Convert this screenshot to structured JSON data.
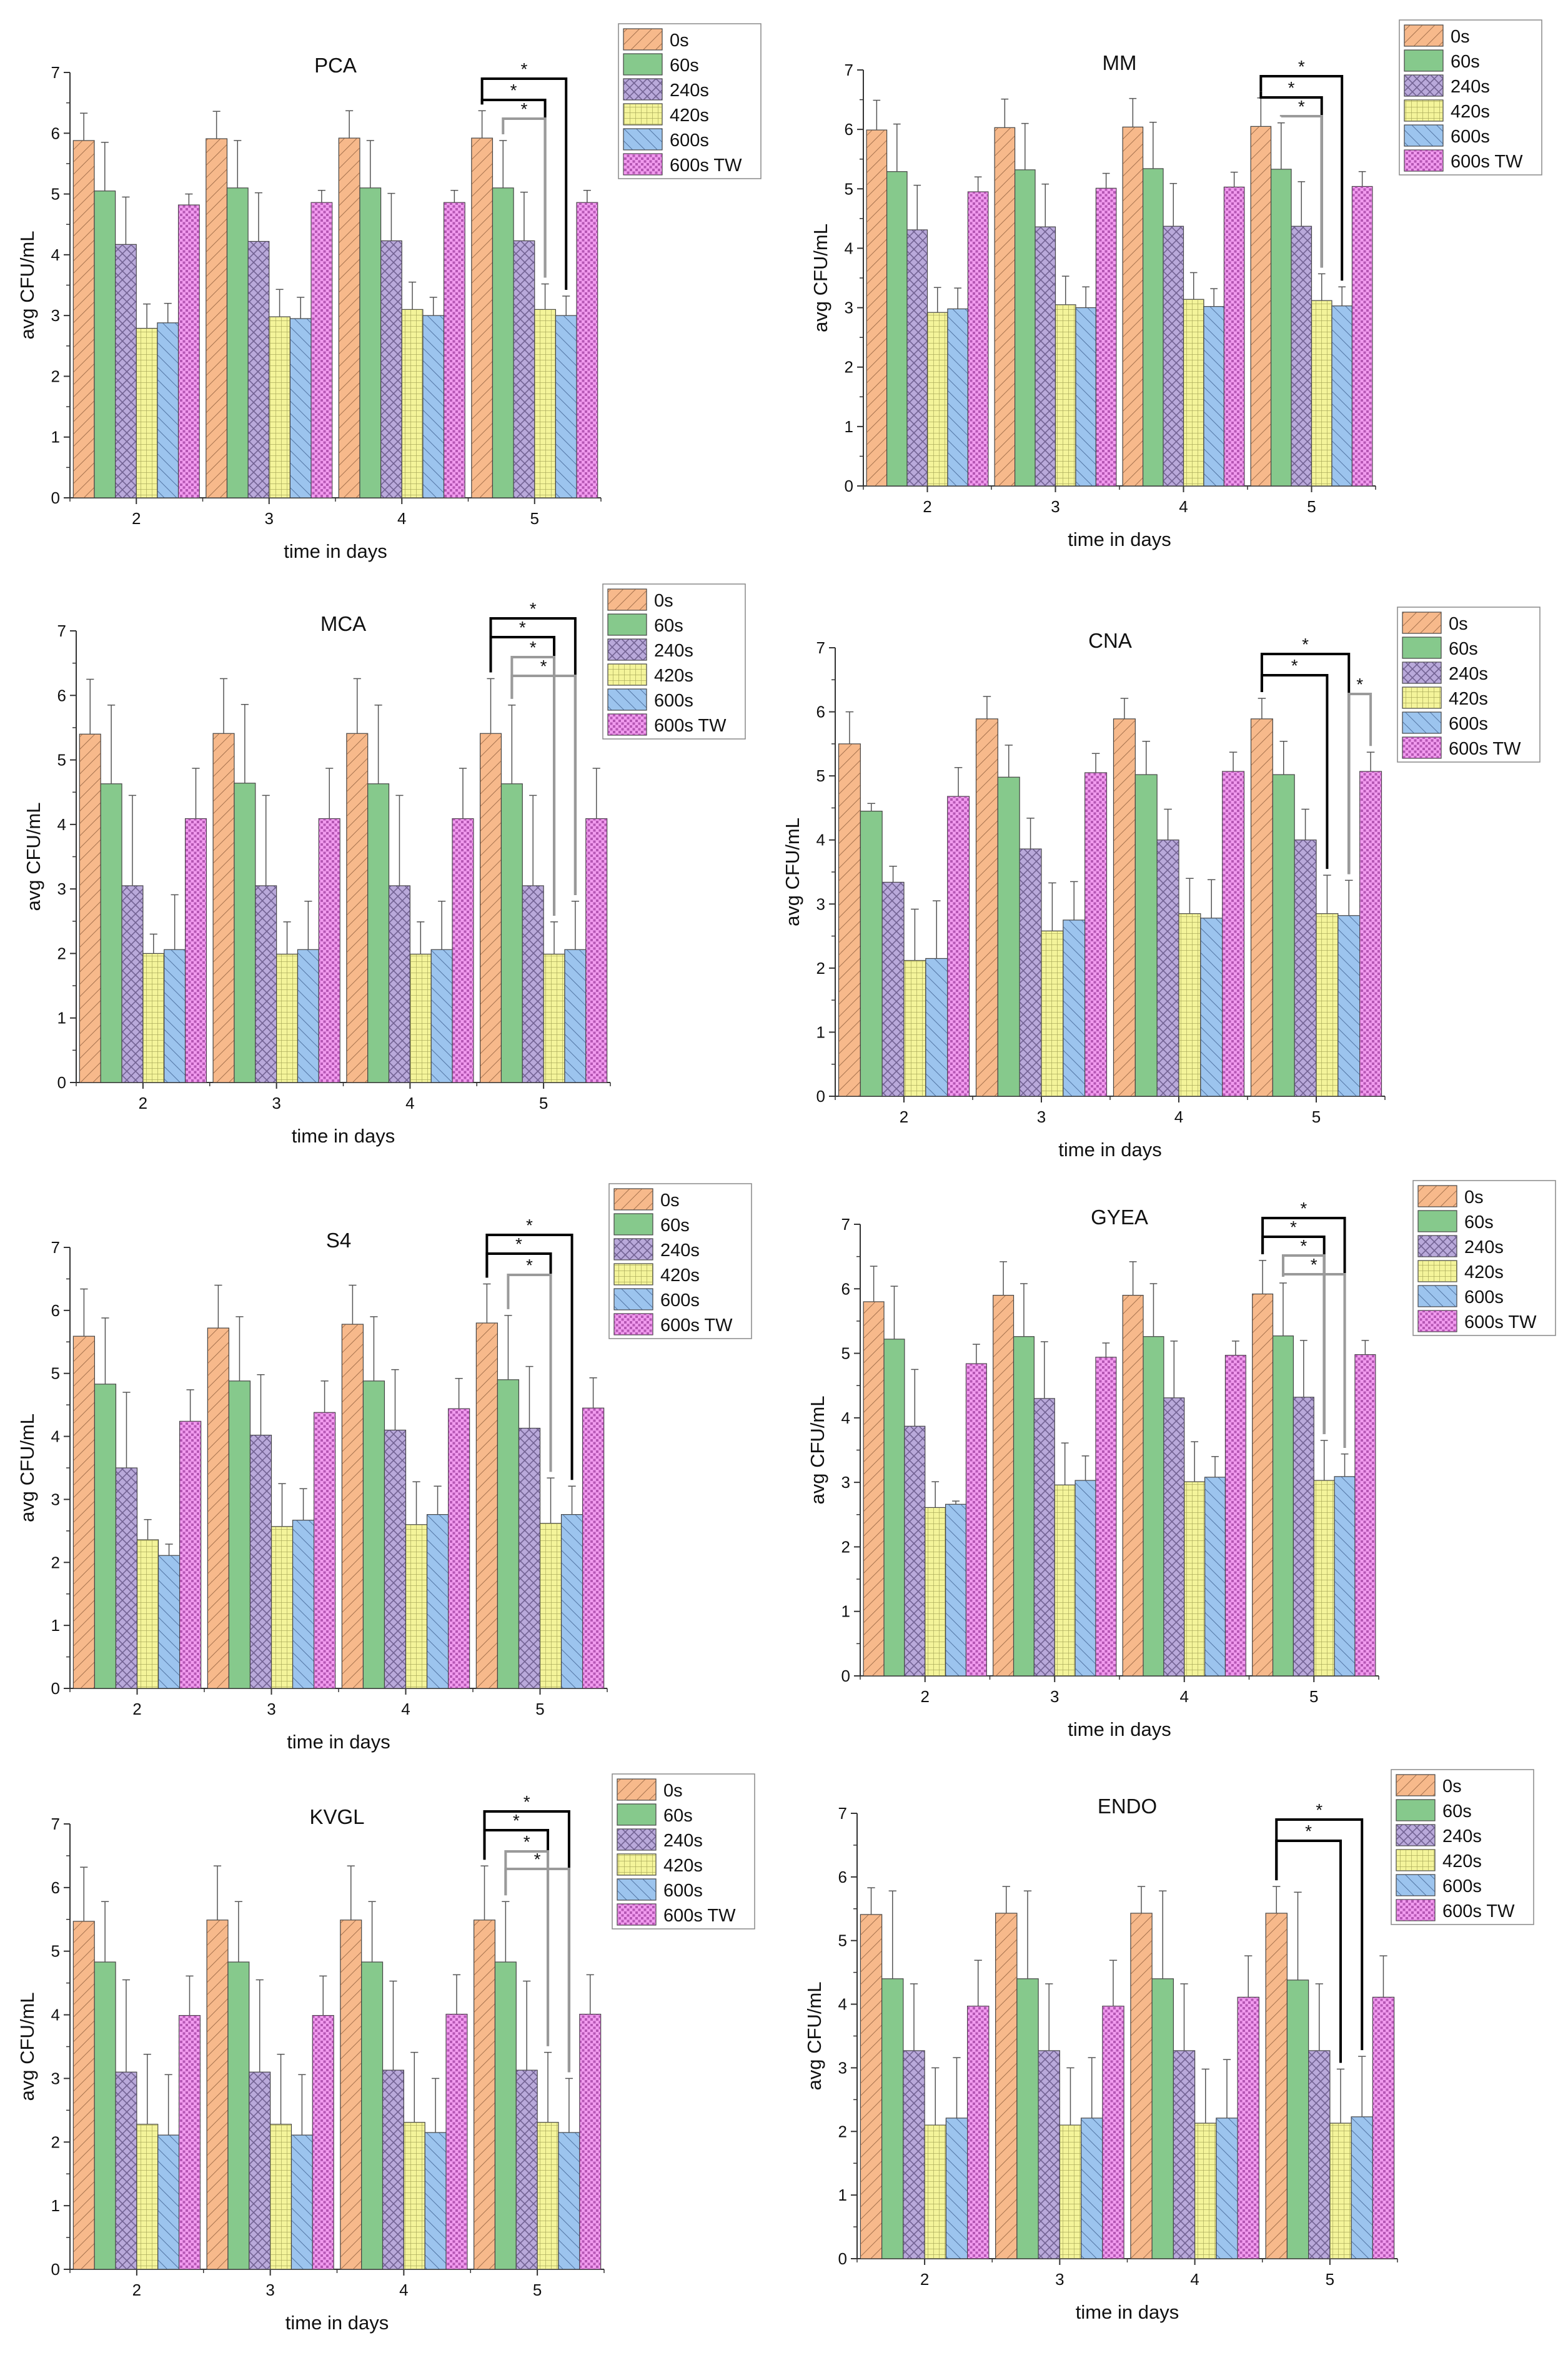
{
  "chart_data": [
    {
      "type": "bar",
      "title": "PCA",
      "categories": [
        "2",
        "3",
        "4",
        "5"
      ],
      "xlabel": "time in days",
      "ylabel": "avg CFU/mL",
      "ylim": [
        0,
        7
      ],
      "yticks": [
        "0",
        "1",
        "2",
        "3",
        "4",
        "5",
        "6",
        "7"
      ],
      "legend_position": "top-right",
      "series": [
        {
          "name": "0s",
          "values": [
            5.88,
            5.91,
            5.92,
            5.92
          ],
          "errors": [
            0.45,
            0.45,
            0.45,
            0.45
          ]
        },
        {
          "name": "60s",
          "values": [
            5.05,
            5.1,
            5.1,
            5.1
          ],
          "errors": [
            0.8,
            0.78,
            0.78,
            0.78
          ]
        },
        {
          "name": "240s",
          "values": [
            4.17,
            4.22,
            4.23,
            4.23
          ],
          "errors": [
            0.78,
            0.8,
            0.78,
            0.8
          ]
        },
        {
          "name": "420s",
          "values": [
            2.79,
            2.98,
            3.1,
            3.1
          ],
          "errors": [
            0.4,
            0.45,
            0.45,
            0.42
          ]
        },
        {
          "name": "600s",
          "values": [
            2.88,
            2.95,
            3.0,
            3.0
          ],
          "errors": [
            0.32,
            0.35,
            0.3,
            0.32
          ]
        },
        {
          "name": "600s TW",
          "values": [
            4.82,
            4.86,
            4.86,
            4.86
          ],
          "errors": [
            0.18,
            0.2,
            0.2,
            0.2
          ]
        }
      ],
      "annotations": [
        "*",
        "*",
        "*"
      ]
    },
    {
      "type": "bar",
      "title": "MM",
      "categories": [
        "2",
        "3",
        "4",
        "5"
      ],
      "xlabel": "time in days",
      "ylabel": "avg CFU/mL",
      "ylim": [
        0,
        7
      ],
      "yticks": [
        "0",
        "1",
        "2",
        "3",
        "4",
        "5",
        "6",
        "7"
      ],
      "legend_position": "top-right",
      "series": [
        {
          "name": "0s",
          "values": [
            5.99,
            6.03,
            6.04,
            6.05
          ],
          "errors": [
            0.5,
            0.48,
            0.48,
            0.48
          ]
        },
        {
          "name": "60s",
          "values": [
            5.29,
            5.32,
            5.34,
            5.33
          ],
          "errors": [
            0.8,
            0.78,
            0.78,
            0.78
          ]
        },
        {
          "name": "240s",
          "values": [
            4.31,
            4.36,
            4.37,
            4.37
          ],
          "errors": [
            0.75,
            0.72,
            0.72,
            0.75
          ]
        },
        {
          "name": "420s",
          "values": [
            2.92,
            3.05,
            3.14,
            3.12
          ],
          "errors": [
            0.42,
            0.48,
            0.45,
            0.45
          ]
        },
        {
          "name": "600s",
          "values": [
            2.98,
            3.0,
            3.02,
            3.03
          ],
          "errors": [
            0.35,
            0.35,
            0.3,
            0.32
          ]
        },
        {
          "name": "600s TW",
          "values": [
            4.95,
            5.01,
            5.03,
            5.04
          ],
          "errors": [
            0.25,
            0.25,
            0.25,
            0.25
          ]
        }
      ],
      "annotations": [
        "*",
        "*",
        "*"
      ]
    },
    {
      "type": "bar",
      "title": "MCA",
      "categories": [
        "2",
        "3",
        "4",
        "5"
      ],
      "xlabel": "time in days",
      "ylabel": "avg CFU/mL",
      "ylim": [
        0,
        7
      ],
      "yticks": [
        "0",
        "1",
        "2",
        "3",
        "4",
        "5",
        "6",
        "7"
      ],
      "legend_position": "top-right",
      "series": [
        {
          "name": "0s",
          "values": [
            5.4,
            5.41,
            5.41,
            5.41
          ],
          "errors": [
            0.85,
            0.85,
            0.85,
            0.85
          ]
        },
        {
          "name": "60s",
          "values": [
            4.63,
            4.64,
            4.63,
            4.63
          ],
          "errors": [
            1.22,
            1.22,
            1.22,
            1.22
          ]
        },
        {
          "name": "240s",
          "values": [
            3.05,
            3.05,
            3.05,
            3.05
          ],
          "errors": [
            1.4,
            1.4,
            1.4,
            1.4
          ]
        },
        {
          "name": "420s",
          "values": [
            2.0,
            1.99,
            1.99,
            1.99
          ],
          "errors": [
            0.3,
            0.5,
            0.5,
            0.5
          ]
        },
        {
          "name": "600s",
          "values": [
            2.06,
            2.06,
            2.06,
            2.06
          ],
          "errors": [
            0.85,
            0.75,
            0.75,
            0.75
          ]
        },
        {
          "name": "600s TW",
          "values": [
            4.09,
            4.09,
            4.09,
            4.09
          ],
          "errors": [
            0.78,
            0.78,
            0.78,
            0.78
          ]
        }
      ],
      "annotations": [
        "*",
        "*",
        "*",
        "*"
      ]
    },
    {
      "type": "bar",
      "title": "CNA",
      "categories": [
        "2",
        "3",
        "4",
        "5"
      ],
      "xlabel": "time in days",
      "ylabel": "avg CFU/mL",
      "ylim": [
        0,
        7
      ],
      "yticks": [
        "0",
        "1",
        "2",
        "3",
        "4",
        "5",
        "6",
        "7"
      ],
      "legend_position": "top-right",
      "series": [
        {
          "name": "0s",
          "values": [
            5.5,
            5.89,
            5.89,
            5.89
          ],
          "errors": [
            0.5,
            0.35,
            0.32,
            0.32
          ]
        },
        {
          "name": "60s",
          "values": [
            4.45,
            4.98,
            5.02,
            5.02
          ],
          "errors": [
            0.12,
            0.5,
            0.52,
            0.52
          ]
        },
        {
          "name": "240s",
          "values": [
            3.34,
            3.86,
            4.0,
            4.0
          ],
          "errors": [
            0.25,
            0.48,
            0.48,
            0.48
          ]
        },
        {
          "name": "420s",
          "values": [
            2.12,
            2.58,
            2.85,
            2.85
          ],
          "errors": [
            0.8,
            0.75,
            0.55,
            0.6
          ]
        },
        {
          "name": "600s",
          "values": [
            2.15,
            2.75,
            2.78,
            2.82
          ],
          "errors": [
            0.9,
            0.6,
            0.6,
            0.55
          ]
        },
        {
          "name": "600s TW",
          "values": [
            4.68,
            5.05,
            5.07,
            5.07
          ],
          "errors": [
            0.45,
            0.3,
            0.3,
            0.3
          ]
        }
      ],
      "annotations": [
        "*",
        "*",
        "*"
      ]
    },
    {
      "type": "bar",
      "title": "S4",
      "categories": [
        "2",
        "3",
        "4",
        "5"
      ],
      "xlabel": "time in days",
      "ylabel": "avg CFU/mL",
      "ylim": [
        0,
        7
      ],
      "yticks": [
        "0",
        "1",
        "2",
        "3",
        "4",
        "5",
        "6",
        "7"
      ],
      "legend_position": "top-right",
      "series": [
        {
          "name": "0s",
          "values": [
            5.59,
            5.72,
            5.78,
            5.8
          ],
          "errors": [
            0.75,
            0.68,
            0.62,
            0.62
          ]
        },
        {
          "name": "60s",
          "values": [
            4.83,
            4.88,
            4.88,
            4.9
          ],
          "errors": [
            1.05,
            1.02,
            1.02,
            1.02
          ]
        },
        {
          "name": "240s",
          "values": [
            3.5,
            4.02,
            4.1,
            4.13
          ],
          "errors": [
            1.2,
            0.96,
            0.96,
            0.98
          ]
        },
        {
          "name": "420s",
          "values": [
            2.36,
            2.57,
            2.6,
            2.62
          ],
          "errors": [
            0.32,
            0.68,
            0.68,
            0.72
          ]
        },
        {
          "name": "600s",
          "values": [
            2.11,
            2.67,
            2.76,
            2.76
          ],
          "errors": [
            0.18,
            0.5,
            0.45,
            0.45
          ]
        },
        {
          "name": "600s TW",
          "values": [
            4.24,
            4.38,
            4.44,
            4.45
          ],
          "errors": [
            0.5,
            0.5,
            0.48,
            0.48
          ]
        }
      ],
      "annotations": [
        "*",
        "*",
        "*"
      ]
    },
    {
      "type": "bar",
      "title": "GYEA",
      "categories": [
        "2",
        "3",
        "4",
        "5"
      ],
      "xlabel": "time in days",
      "ylabel": "avg CFU/mL",
      "ylim": [
        0,
        7
      ],
      "yticks": [
        "0",
        "1",
        "2",
        "3",
        "4",
        "5",
        "6",
        "7"
      ],
      "legend_position": "top-right",
      "series": [
        {
          "name": "0s",
          "values": [
            5.8,
            5.9,
            5.9,
            5.92
          ],
          "errors": [
            0.55,
            0.52,
            0.52,
            0.52
          ]
        },
        {
          "name": "60s",
          "values": [
            5.22,
            5.26,
            5.26,
            5.27
          ],
          "errors": [
            0.82,
            0.82,
            0.82,
            0.82
          ]
        },
        {
          "name": "240s",
          "values": [
            3.87,
            4.3,
            4.31,
            4.32
          ],
          "errors": [
            0.88,
            0.88,
            0.88,
            0.88
          ]
        },
        {
          "name": "420s",
          "values": [
            2.61,
            2.96,
            3.01,
            3.03
          ],
          "errors": [
            0.4,
            0.65,
            0.62,
            0.62
          ]
        },
        {
          "name": "600s",
          "values": [
            2.66,
            3.03,
            3.08,
            3.09
          ],
          "errors": [
            0.05,
            0.38,
            0.32,
            0.35
          ]
        },
        {
          "name": "600s TW",
          "values": [
            4.84,
            4.94,
            4.97,
            4.98
          ],
          "errors": [
            0.3,
            0.22,
            0.22,
            0.22
          ]
        }
      ],
      "annotations": [
        "*",
        "*",
        "*",
        "*"
      ]
    },
    {
      "type": "bar",
      "title": "KVGL",
      "categories": [
        "2",
        "3",
        "4",
        "5"
      ],
      "xlabel": "time in days",
      "ylabel": "avg CFU/mL",
      "ylim": [
        0,
        7
      ],
      "yticks": [
        "0",
        "1",
        "2",
        "3",
        "4",
        "5",
        "6",
        "7"
      ],
      "legend_position": "top-right",
      "series": [
        {
          "name": "0s",
          "values": [
            5.47,
            5.49,
            5.49,
            5.49
          ],
          "errors": [
            0.85,
            0.85,
            0.85,
            0.85
          ]
        },
        {
          "name": "60s",
          "values": [
            4.83,
            4.83,
            4.83,
            4.83
          ],
          "errors": [
            0.95,
            0.95,
            0.95,
            0.95
          ]
        },
        {
          "name": "240s",
          "values": [
            3.1,
            3.1,
            3.13,
            3.13
          ],
          "errors": [
            1.45,
            1.45,
            1.4,
            1.4
          ]
        },
        {
          "name": "420s",
          "values": [
            2.28,
            2.28,
            2.31,
            2.31
          ],
          "errors": [
            1.1,
            1.1,
            1.1,
            1.1
          ]
        },
        {
          "name": "600s",
          "values": [
            2.11,
            2.11,
            2.15,
            2.15
          ],
          "errors": [
            0.95,
            0.95,
            0.85,
            0.85
          ]
        },
        {
          "name": "600s TW",
          "values": [
            3.99,
            3.99,
            4.01,
            4.01
          ],
          "errors": [
            0.62,
            0.62,
            0.62,
            0.62
          ]
        }
      ],
      "annotations": [
        "*",
        "*",
        "*",
        "*"
      ]
    },
    {
      "type": "bar",
      "title": "ENDO",
      "categories": [
        "2",
        "3",
        "4",
        "5"
      ],
      "xlabel": "time in days",
      "ylabel": "avg CFU/mL",
      "ylim": [
        0,
        7
      ],
      "yticks": [
        "0",
        "1",
        "2",
        "3",
        "4",
        "5",
        "6",
        "7"
      ],
      "legend_position": "top-right",
      "series": [
        {
          "name": "0s",
          "values": [
            5.41,
            5.43,
            5.43,
            5.43
          ],
          "errors": [
            0.42,
            0.42,
            0.42,
            0.42
          ]
        },
        {
          "name": "60s",
          "values": [
            4.4,
            4.4,
            4.4,
            4.38
          ],
          "errors": [
            1.38,
            1.38,
            1.38,
            1.38
          ]
        },
        {
          "name": "240s",
          "values": [
            3.27,
            3.27,
            3.27,
            3.27
          ],
          "errors": [
            1.05,
            1.05,
            1.05,
            1.05
          ]
        },
        {
          "name": "420s",
          "values": [
            2.1,
            2.1,
            2.13,
            2.13
          ],
          "errors": [
            0.9,
            0.9,
            0.85,
            0.85
          ]
        },
        {
          "name": "600s",
          "values": [
            2.21,
            2.21,
            2.21,
            2.23
          ],
          "errors": [
            0.95,
            0.95,
            0.92,
            0.95
          ]
        },
        {
          "name": "600s TW",
          "values": [
            3.97,
            3.97,
            4.11,
            4.11
          ],
          "errors": [
            0.72,
            0.72,
            0.65,
            0.65
          ]
        }
      ],
      "annotations": [
        "*",
        "*"
      ]
    }
  ],
  "style": {
    "series_colors": [
      "#F7B98B",
      "#86C98C",
      "#B9A9DA",
      "#F4F49A",
      "#9CC4EE",
      "#F29BEF"
    ],
    "series_patterns": [
      "diag-right",
      "none",
      "crosshatch",
      "grid",
      "diag-left",
      "dots"
    ],
    "axis_color": "#333333",
    "significance_primary": "#000000",
    "significance_secondary": "#9a9a9a"
  }
}
